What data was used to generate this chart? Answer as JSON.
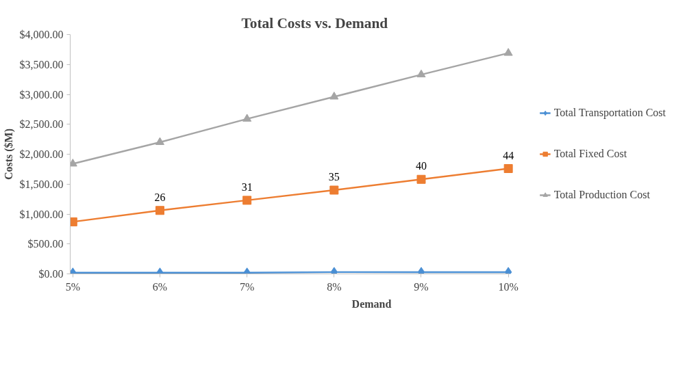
{
  "chart_data": {
    "type": "line",
    "title": "Total Costs vs. Demand",
    "xlabel": "Demand",
    "ylabel": "Costs ($M)",
    "categories": [
      "5%",
      "6%",
      "7%",
      "8%",
      "9%",
      "10%"
    ],
    "series": [
      {
        "name": "Total Transportation Cost",
        "color": "#4a8fd4",
        "marker": "diamond",
        "values": [
          20,
          20,
          20,
          30,
          30,
          30
        ]
      },
      {
        "name": "Total Fixed Cost",
        "color": "#ed7d31",
        "marker": "square",
        "values": [
          870,
          1060,
          1230,
          1400,
          1580,
          1760
        ]
      },
      {
        "name": "Total Production Cost",
        "color": "#a5a5a5",
        "marker": "triangle",
        "values": [
          1840,
          2200,
          2590,
          2960,
          3330,
          3690
        ]
      }
    ],
    "annotations": [
      {
        "text": "26",
        "x": "6%",
        "y": 1060
      },
      {
        "text": "31",
        "x": "7%",
        "y": 1230
      },
      {
        "text": "35",
        "x": "8%",
        "y": 1400
      },
      {
        "text": "40",
        "x": "9%",
        "y": 1580
      },
      {
        "text": "44",
        "x": "10%",
        "y": 1760
      }
    ],
    "ylim": [
      0,
      4000
    ],
    "yticks": [
      {
        "value": 0,
        "label": "$0.00"
      },
      {
        "value": 500,
        "label": "$500.00"
      },
      {
        "value": 1000,
        "label": "$1,000.00"
      },
      {
        "value": 1500,
        "label": "$1,500.00"
      },
      {
        "value": 2000,
        "label": "$2,000.00"
      },
      {
        "value": 2500,
        "label": "$2,500.00"
      },
      {
        "value": 3000,
        "label": "$3,000.00"
      },
      {
        "value": 3500,
        "label": "$3,500.00"
      },
      {
        "value": 4000,
        "label": "$4,000.00"
      }
    ],
    "grid": false,
    "legend": "right",
    "line_style": "solid"
  }
}
